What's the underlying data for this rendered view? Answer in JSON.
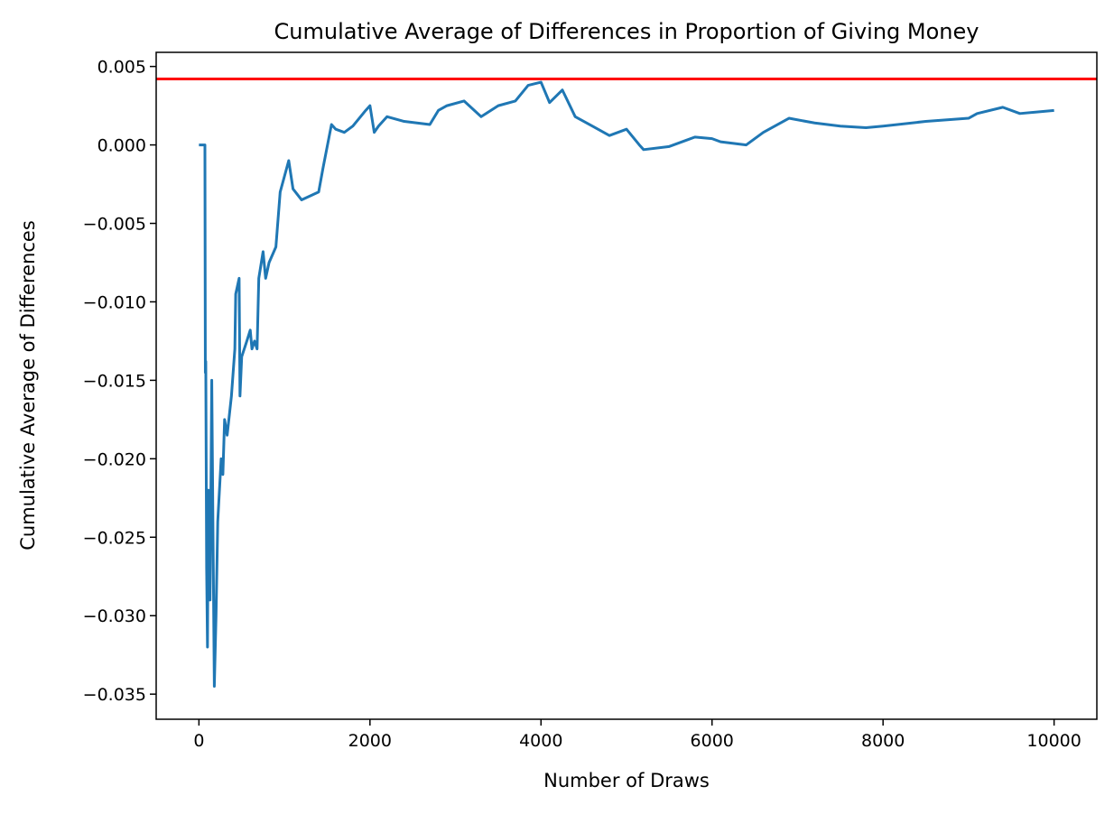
{
  "chart_data": {
    "type": "line",
    "title": "Cumulative Average of Differences in Proportion of Giving Money",
    "x_label": "Number of Draws",
    "y_label": "Cumulative Average of Differences",
    "xlim": [
      -500,
      10500
    ],
    "ylim": [
      -0.0366,
      0.0059
    ],
    "xticks": [
      0,
      2000,
      4000,
      6000,
      8000,
      10000
    ],
    "yticks": [
      {
        "value": 0.005,
        "label": "0.005"
      },
      {
        "value": 0,
        "label": "0.000"
      },
      {
        "value": -0.005,
        "label": "−0.005"
      },
      {
        "value": -0.01,
        "label": "−0.010"
      },
      {
        "value": -0.015,
        "label": "−0.015"
      },
      {
        "value": -0.02,
        "label": "−0.020"
      },
      {
        "value": -0.025,
        "label": "−0.025"
      },
      {
        "value": -0.03,
        "label": "−0.030"
      },
      {
        "value": -0.035,
        "label": "−0.035"
      }
    ],
    "reference_line": {
      "value": 0.0042,
      "color": "#ff0000"
    },
    "x": [
      0,
      70,
      75,
      80,
      90,
      100,
      110,
      130,
      150,
      165,
      180,
      200,
      220,
      260,
      280,
      300,
      330,
      380,
      420,
      430,
      470,
      480,
      500,
      560,
      600,
      620,
      650,
      680,
      700,
      750,
      780,
      820,
      900,
      950,
      1000,
      1050,
      1100,
      1200,
      1400,
      1450,
      1550,
      1600,
      1700,
      1800,
      1950,
      2000,
      2050,
      2100,
      2200,
      2400,
      2700,
      2800,
      2900,
      3100,
      3300,
      3500,
      3700,
      3850,
      4000,
      4100,
      4250,
      4400,
      4600,
      4800,
      5000,
      5150,
      5200,
      5500,
      5800,
      6000,
      6100,
      6400,
      6600,
      6900,
      7200,
      7500,
      7800,
      8000,
      8500,
      9000,
      9100,
      9400,
      9600,
      10000
    ],
    "series": [
      {
        "color": "#1f77b4",
        "values": [
          0,
          0,
          -0.0145,
          -0.0138,
          -0.027,
          -0.032,
          -0.022,
          -0.029,
          -0.015,
          -0.025,
          -0.0345,
          -0.03,
          -0.024,
          -0.02,
          -0.021,
          -0.0175,
          -0.0185,
          -0.016,
          -0.013,
          -0.0095,
          -0.0085,
          -0.016,
          -0.0135,
          -0.0125,
          -0.0118,
          -0.013,
          -0.0125,
          -0.013,
          -0.0085,
          -0.0068,
          -0.0085,
          -0.0075,
          -0.0065,
          -0.003,
          -0.002,
          -0.001,
          -0.0028,
          -0.0035,
          -0.003,
          -0.0015,
          0.0013,
          0.001,
          0.0008,
          0.0012,
          0.0022,
          0.0025,
          0.0008,
          0.0012,
          0.0018,
          0.0015,
          0.0013,
          0.0022,
          0.0025,
          0.0028,
          0.0018,
          0.0025,
          0.0028,
          0.0038,
          0.004,
          0.0027,
          0.0035,
          0.0018,
          0.0012,
          0.0006,
          0.001,
          0,
          -0.0003,
          -0.0001,
          0.0005,
          0.0004,
          0.0002,
          0,
          0.0008,
          0.0017,
          0.0014,
          0.0012,
          0.0011,
          0.0012,
          0.0015,
          0.0017,
          0.002,
          0.0024,
          0.002,
          0.0022
        ]
      }
    ]
  }
}
